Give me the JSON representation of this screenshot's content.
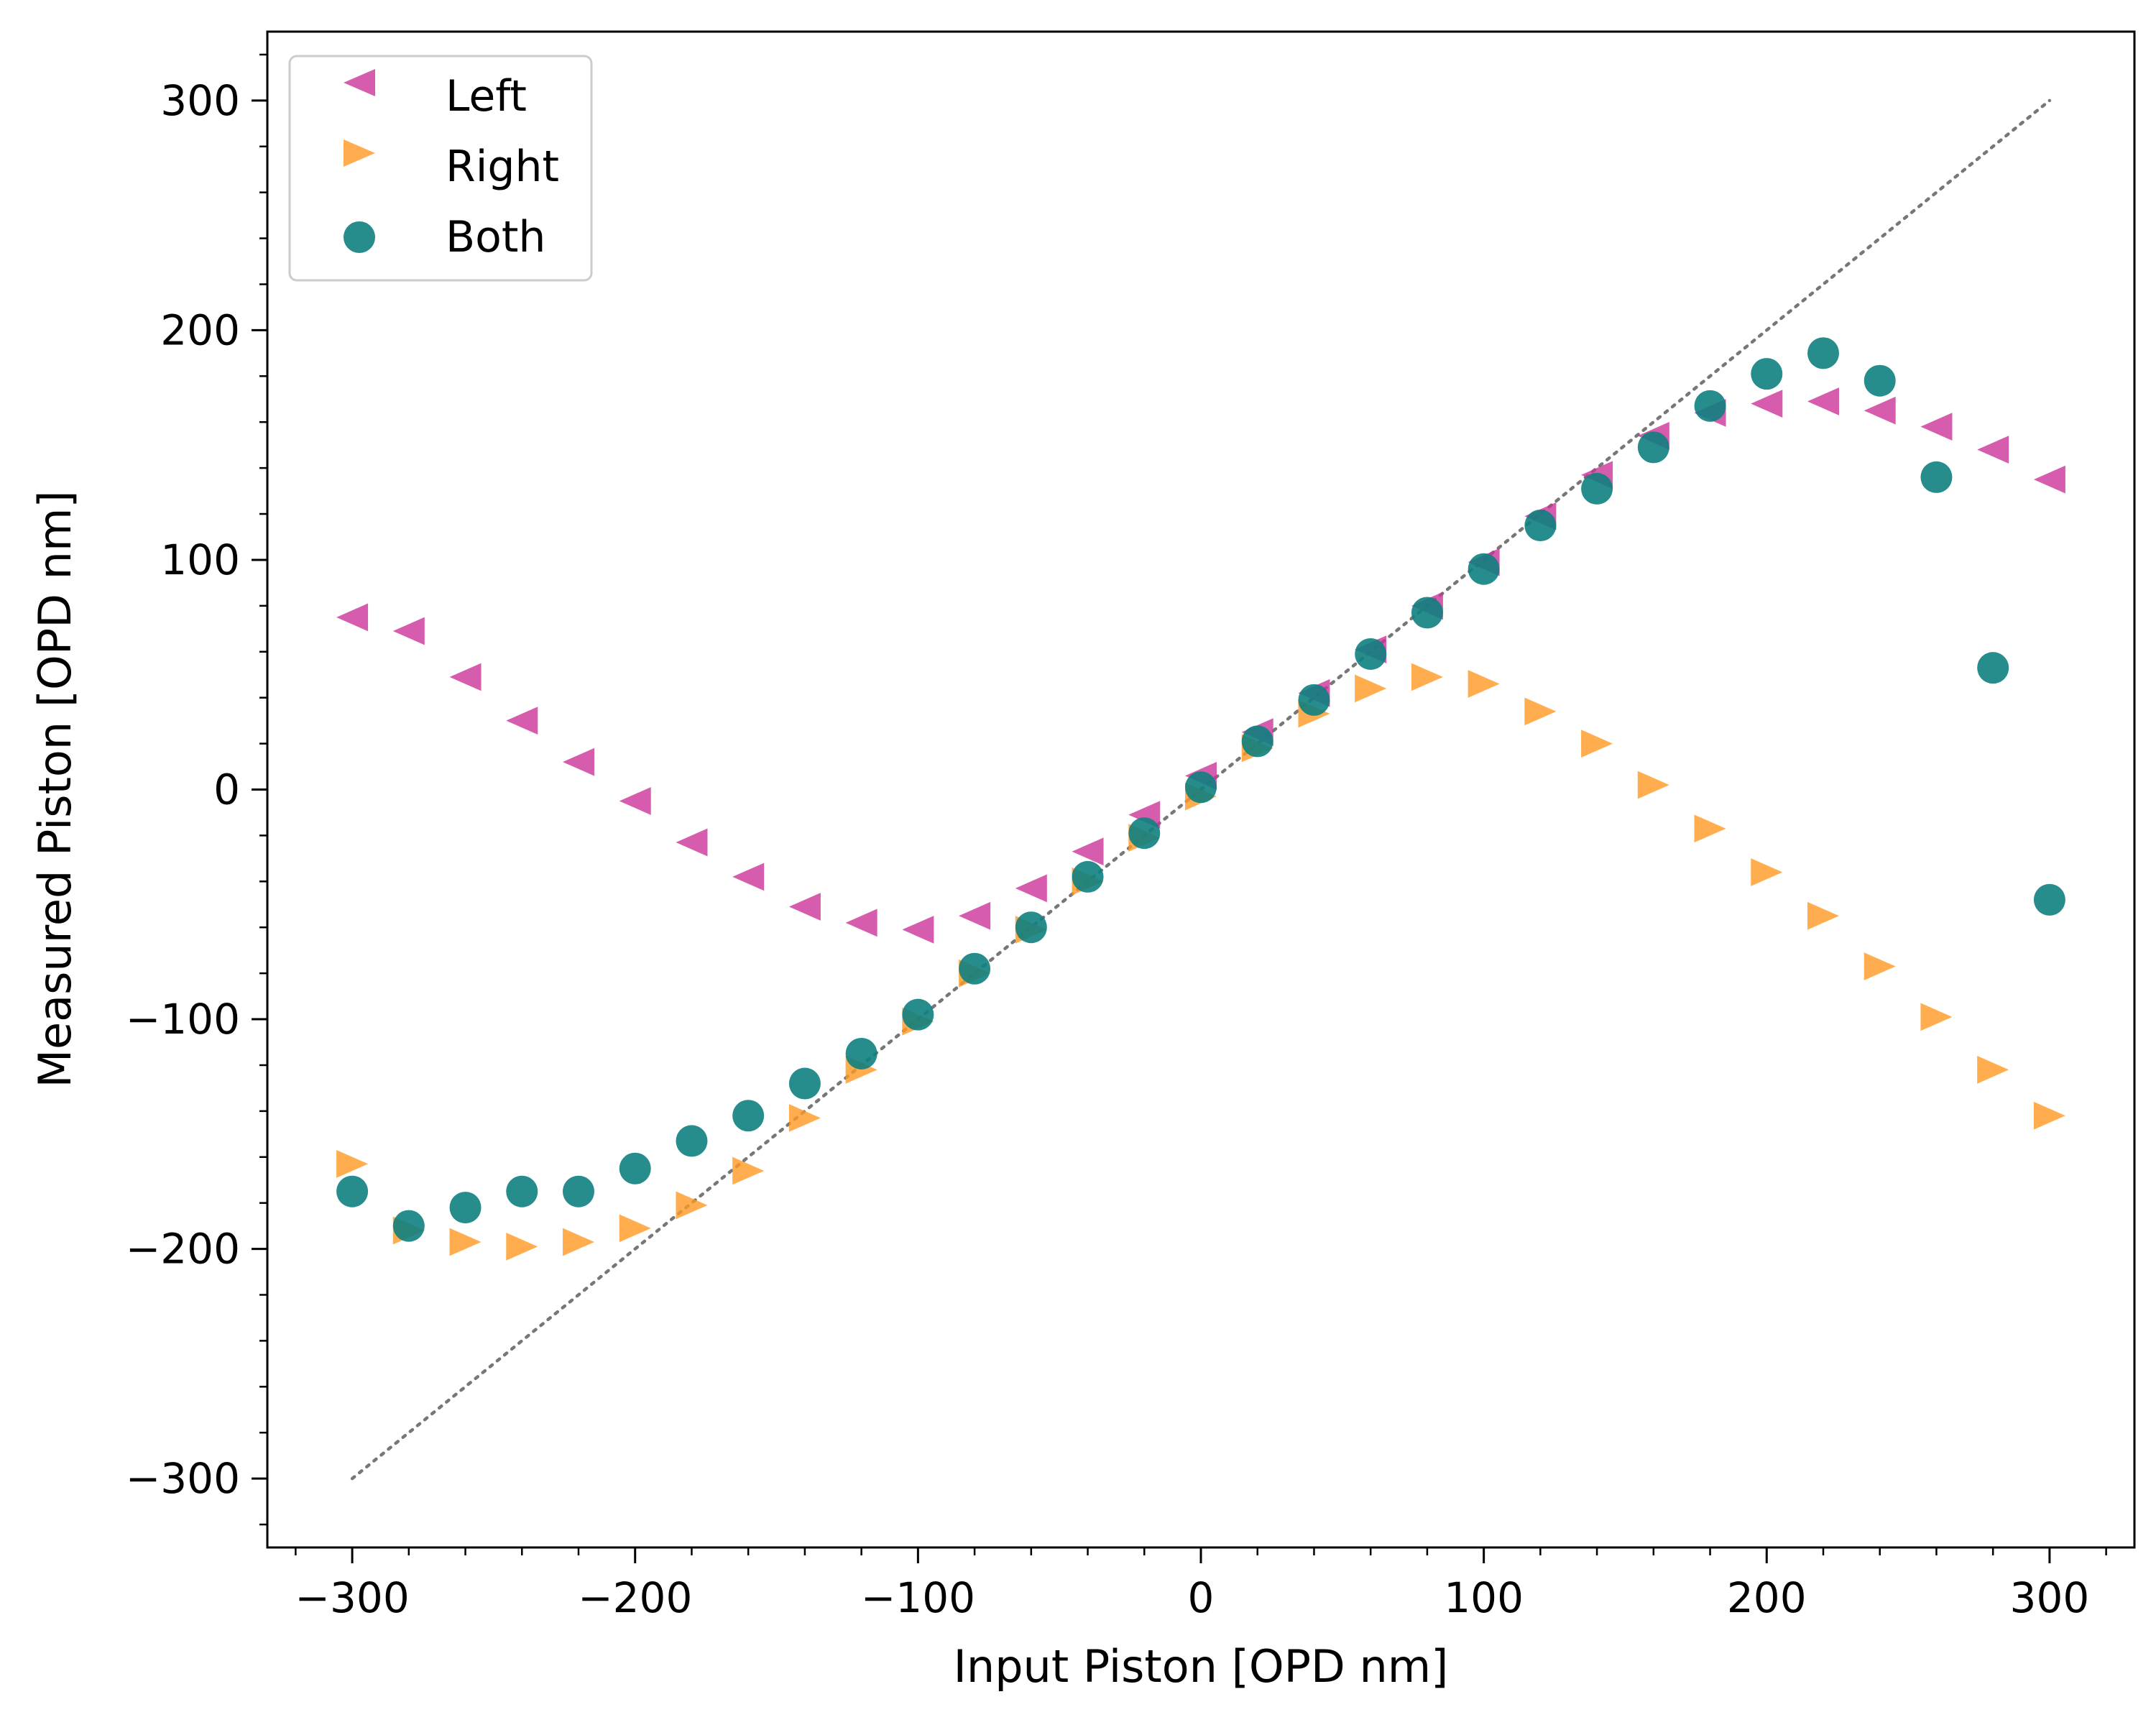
{
  "chart_data": {
    "type": "scatter",
    "title": "",
    "xlabel": "Input Piston [OPD nm]",
    "ylabel": "Measured Piston [OPD nm]",
    "xlim": [
      -330,
      330
    ],
    "ylim": [
      -330,
      330
    ],
    "xticks": [
      -300,
      -200,
      -100,
      0,
      100,
      200,
      300
    ],
    "yticks": [
      -300,
      -200,
      -100,
      0,
      100,
      200,
      300
    ],
    "xtick_labels": [
      "−300",
      "−200",
      "−100",
      "0",
      "100",
      "200",
      "300"
    ],
    "ytick_labels": [
      "−300",
      "−200",
      "−100",
      "0",
      "100",
      "200",
      "300"
    ],
    "grid": false,
    "legend_position": "top-left",
    "x": [
      -300,
      -280,
      -260,
      -240,
      -220,
      -200,
      -180,
      -160,
      -140,
      -120,
      -100,
      -80,
      -60,
      -40,
      -20,
      0,
      20,
      40,
      60,
      80,
      100,
      120,
      140,
      160,
      180,
      200,
      220,
      240,
      260,
      280,
      300
    ],
    "series": [
      {
        "name": "Left",
        "marker": "triangle-left",
        "color": "#cc3399",
        "values": [
          75,
          69,
          49,
          30,
          12,
          -5,
          -23,
          -38,
          -51,
          -58,
          -61,
          -55,
          -43,
          -27,
          -11,
          6,
          25,
          42,
          61,
          80,
          99,
          119,
          137,
          154,
          164,
          168,
          169,
          165,
          158,
          148,
          135
        ]
      },
      {
        "name": "Right",
        "marker": "triangle-right",
        "color": "#ff9922",
        "values": [
          -163,
          -192,
          -197,
          -199,
          -197,
          -191,
          -181,
          -166,
          -143,
          -122,
          -101,
          -80,
          -61,
          -40,
          -21,
          -3,
          18,
          33,
          44,
          49,
          46,
          34,
          20,
          2,
          -17,
          -36,
          -55,
          -77,
          -99,
          -122,
          -142
        ]
      },
      {
        "name": "Both",
        "marker": "circle",
        "color": "#0f7f7f",
        "values": [
          -175,
          -190,
          -182,
          -175,
          -175,
          -165,
          -153,
          -142,
          -128,
          -115,
          -98,
          -78,
          -60,
          -38,
          -19,
          1,
          21,
          39,
          59,
          77,
          96,
          115,
          131,
          149,
          167,
          181,
          190,
          178,
          136,
          53,
          -48
        ]
      }
    ],
    "reference_line": {
      "name": "y = x",
      "style": "dotted",
      "color": "#777777",
      "x": [
        -300,
        300
      ],
      "y": [
        -300,
        300
      ]
    }
  }
}
